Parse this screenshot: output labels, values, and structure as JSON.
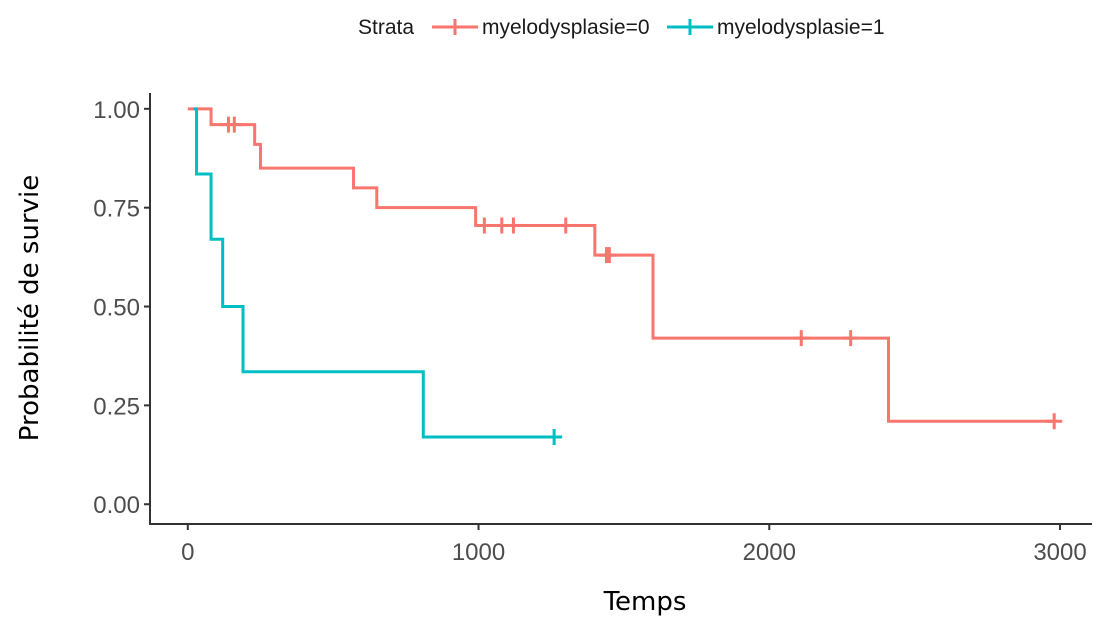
{
  "chart_data": {
    "type": "line",
    "step": true,
    "xlabel": "Temps",
    "ylabel": "Probabilité de survie",
    "xlim": [
      -130,
      3110
    ],
    "ylim": [
      -0.05,
      1.04
    ],
    "x_ticks": [
      0,
      1000,
      2000,
      3000
    ],
    "x_tick_labels": [
      "0",
      "1000",
      "2000",
      "3000"
    ],
    "y_ticks": [
      0.0,
      0.25,
      0.5,
      0.75,
      1.0
    ],
    "y_tick_labels": [
      "0.00",
      "0.25",
      "0.50",
      "0.75",
      "1.00"
    ],
    "grid": false,
    "legend": {
      "position": "top",
      "title": "Strata",
      "entries": [
        "myelodysplasie=0",
        "myelodysplasie=1"
      ]
    },
    "series": [
      {
        "name": "myelodysplasie=0",
        "color": "#F8766D",
        "x": [
          0,
          80,
          200,
          230,
          250,
          570,
          650,
          990,
          1400,
          1440,
          1600,
          2410,
          2980
        ],
        "y": [
          1.0,
          0.96,
          0.96,
          0.91,
          0.85,
          0.8,
          0.75,
          0.705,
          0.63,
          0.63,
          0.42,
          0.21,
          0.21
        ],
        "censored_x": [
          140,
          160,
          1020,
          1080,
          1120,
          1300,
          1440,
          1450,
          2110,
          2280,
          2980
        ],
        "censored_y": [
          0.96,
          0.96,
          0.705,
          0.705,
          0.705,
          0.705,
          0.63,
          0.63,
          0.42,
          0.42,
          0.21
        ]
      },
      {
        "name": "myelodysplasie=1",
        "color": "#00BFC4",
        "x": [
          20,
          30,
          80,
          120,
          190,
          810,
          1270
        ],
        "y": [
          1.0,
          0.835,
          0.67,
          0.5,
          0.335,
          0.17,
          0.17
        ],
        "censored_x": [
          1260
        ],
        "censored_y": [
          0.17
        ]
      }
    ]
  }
}
